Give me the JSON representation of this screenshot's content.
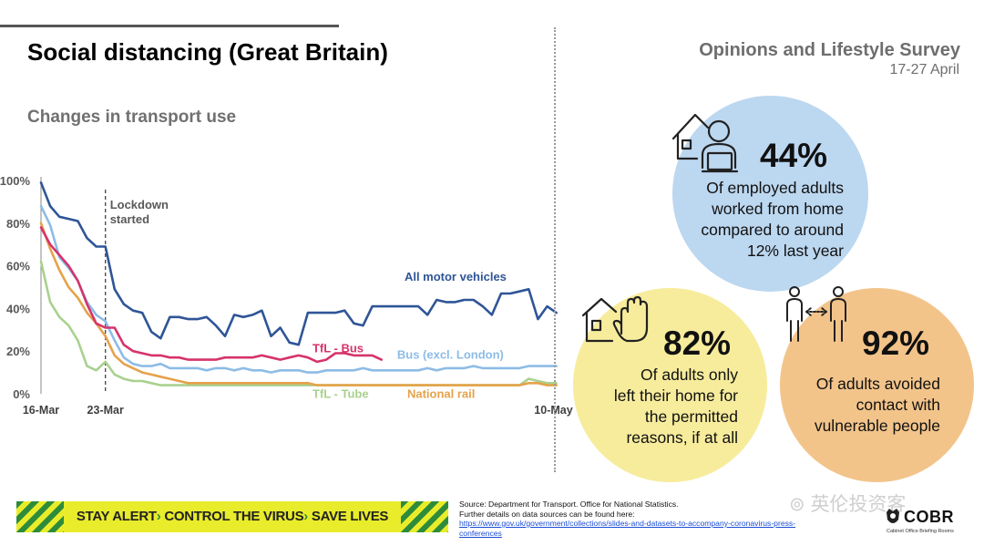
{
  "header": {
    "title": "Social distancing (Great Britain)",
    "subtitle": "Changes in transport use",
    "survey_title": "Opinions and Lifestyle Survey",
    "survey_dates": "17-27 April"
  },
  "chart_data": {
    "type": "line",
    "title": "Changes in transport use",
    "ylabel": "",
    "xlabel": "",
    "ylim": [
      0,
      100
    ],
    "yticks": [
      "0%",
      "20%",
      "40%",
      "60%",
      "80%",
      "100%"
    ],
    "x_start_label": "16-Mar",
    "x_tick_labels": [
      {
        "label": "16-Mar",
        "day": 0
      },
      {
        "label": "23-Mar",
        "day": 7
      },
      {
        "label": "10-May",
        "day": 55
      }
    ],
    "annotation": {
      "line1": "Lockdown",
      "line2": "started",
      "day": 7
    },
    "series": [
      {
        "name": "All motor vehicles",
        "color": "#2f5597",
        "values": [
          99,
          88,
          83,
          82,
          81,
          73,
          69,
          69,
          49,
          42,
          39,
          38,
          29,
          26,
          36,
          36,
          35,
          35,
          36,
          32,
          27,
          37,
          36,
          37,
          39,
          27,
          31,
          24,
          23,
          38,
          38,
          38,
          38,
          39,
          33,
          32,
          41,
          41,
          41,
          41,
          41,
          41,
          37,
          44,
          43,
          43,
          44,
          44,
          41,
          37,
          47,
          47,
          48,
          49,
          35,
          41,
          38
        ]
      },
      {
        "name": "Bus (excl. London)",
        "color": "#8dbce6",
        "values": [
          88,
          79,
          64,
          59,
          53,
          43,
          37,
          34,
          25,
          17,
          14,
          13,
          13,
          14,
          12,
          12,
          12,
          12,
          11,
          12,
          12,
          11,
          12,
          11,
          11,
          10,
          11,
          11,
          11,
          10,
          10,
          11,
          11,
          11,
          11,
          12,
          11,
          11,
          11,
          11,
          11,
          11,
          12,
          11,
          12,
          12,
          12,
          13,
          12,
          12,
          12,
          12,
          12,
          13,
          13,
          13,
          13
        ]
      },
      {
        "name": "TfL - Bus",
        "color": "#d6336c",
        "values": [
          78,
          70,
          65,
          60,
          53,
          42,
          33,
          31,
          31,
          23,
          20,
          19,
          18,
          18,
          17,
          17,
          16,
          16,
          16,
          16,
          17,
          17,
          17,
          17,
          18,
          17,
          16,
          17,
          18,
          17,
          15,
          16,
          19,
          19,
          18,
          18,
          18,
          16
        ]
      },
      {
        "name": "National rail",
        "color": "#e5a24a",
        "values": [
          80,
          68,
          58,
          50,
          45,
          38,
          33,
          27,
          18,
          14,
          12,
          10,
          9,
          8,
          7,
          6,
          5,
          5,
          5,
          5,
          5,
          5,
          5,
          5,
          5,
          5,
          5,
          5,
          5,
          5,
          4,
          4,
          4,
          4,
          4,
          4,
          4,
          4,
          4,
          4,
          4,
          4,
          4,
          4,
          4,
          4,
          4,
          4,
          4,
          4,
          4,
          4,
          4,
          5,
          5,
          4,
          4
        ]
      },
      {
        "name": "TfL - Tube",
        "color": "#a9d18e",
        "values": [
          62,
          43,
          36,
          32,
          25,
          13,
          11,
          15,
          9,
          7,
          6,
          6,
          5,
          4,
          4,
          4,
          4,
          4,
          4,
          4,
          4,
          4,
          4,
          4,
          4,
          4,
          4,
          4,
          4,
          4,
          4,
          4,
          4,
          4,
          4,
          4,
          4,
          4,
          4,
          4,
          4,
          4,
          4,
          4,
          4,
          4,
          4,
          4,
          4,
          4,
          4,
          4,
          4,
          7,
          6,
          5,
          5
        ]
      }
    ]
  },
  "stats": [
    {
      "percent": "44%",
      "line1": "Of employed adults",
      "line2": "worked from home",
      "line3": "compared to around",
      "line4": "12% last year",
      "color": "#bcd7f0",
      "icon": "home-worker-icon"
    },
    {
      "percent": "82%",
      "line1": "Of adults only",
      "line2": "left their home for",
      "line3": "the permitted",
      "line4": "reasons, if at all",
      "color": "#f7ec9c",
      "icon": "home-stop-hand-icon"
    },
    {
      "percent": "92%",
      "line1": "Of adults avoided",
      "line2": "contact with",
      "line3": "vulnerable people",
      "color": "#f3c48a",
      "icon": "distancing-people-icon"
    }
  ],
  "footer": {
    "banner_part1": "STAY ALERT",
    "banner_part2": "CONTROL THE VIRUS",
    "banner_part3": "SAVE LIVES",
    "arrow": "›",
    "source_line1": "Source: Department for Transport. Office for National Statistics.",
    "source_line2": "Further details on data sources can be found here:",
    "source_link": "https://www.gov.uk/government/collections/slides-and-datasets-to-accompany-coronavirus-press-conferences",
    "watermark": "英伦投资客",
    "brand": "COBR",
    "brand_sub": "Cabinet Office Briefing Rooms"
  }
}
